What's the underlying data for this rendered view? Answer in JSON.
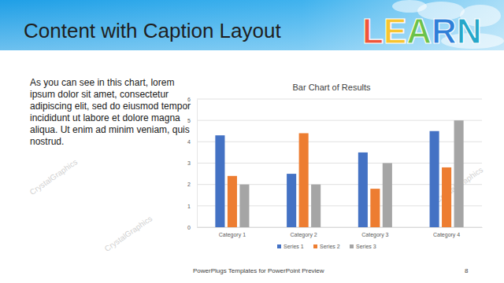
{
  "slide": {
    "title": "Content with Caption Layout",
    "caption": "As you can see in this chart, lorem ipsum dolor sit amet, consectetur adipiscing elit, sed do eiusmod tempor incididunt ut labore et dolore magna aliqua. Ut enim ad minim veniam, quis nostrud.",
    "logo": "LEARN",
    "watermark": "CrystalGraphics",
    "footer": "PowerPlugs Templates for PowerPoint Preview",
    "page_number": 8
  },
  "chart_data": {
    "type": "bar",
    "title": "Bar Chart of Results",
    "categories": [
      "Category 1",
      "Category 2",
      "Category 3",
      "Category 4"
    ],
    "series": [
      {
        "name": "Series 1",
        "color": "#4472c4",
        "values": [
          4.3,
          2.5,
          3.5,
          4.5
        ]
      },
      {
        "name": "Series 2",
        "color": "#ed7d31",
        "values": [
          2.4,
          4.4,
          1.8,
          2.8
        ]
      },
      {
        "name": "Series 3",
        "color": "#a5a5a5",
        "values": [
          2,
          2,
          3,
          5
        ]
      }
    ],
    "ylim": [
      0,
      6
    ],
    "yticks": [
      0,
      1,
      2,
      3,
      4,
      5,
      6
    ],
    "grid": true,
    "legend": "bottom"
  }
}
